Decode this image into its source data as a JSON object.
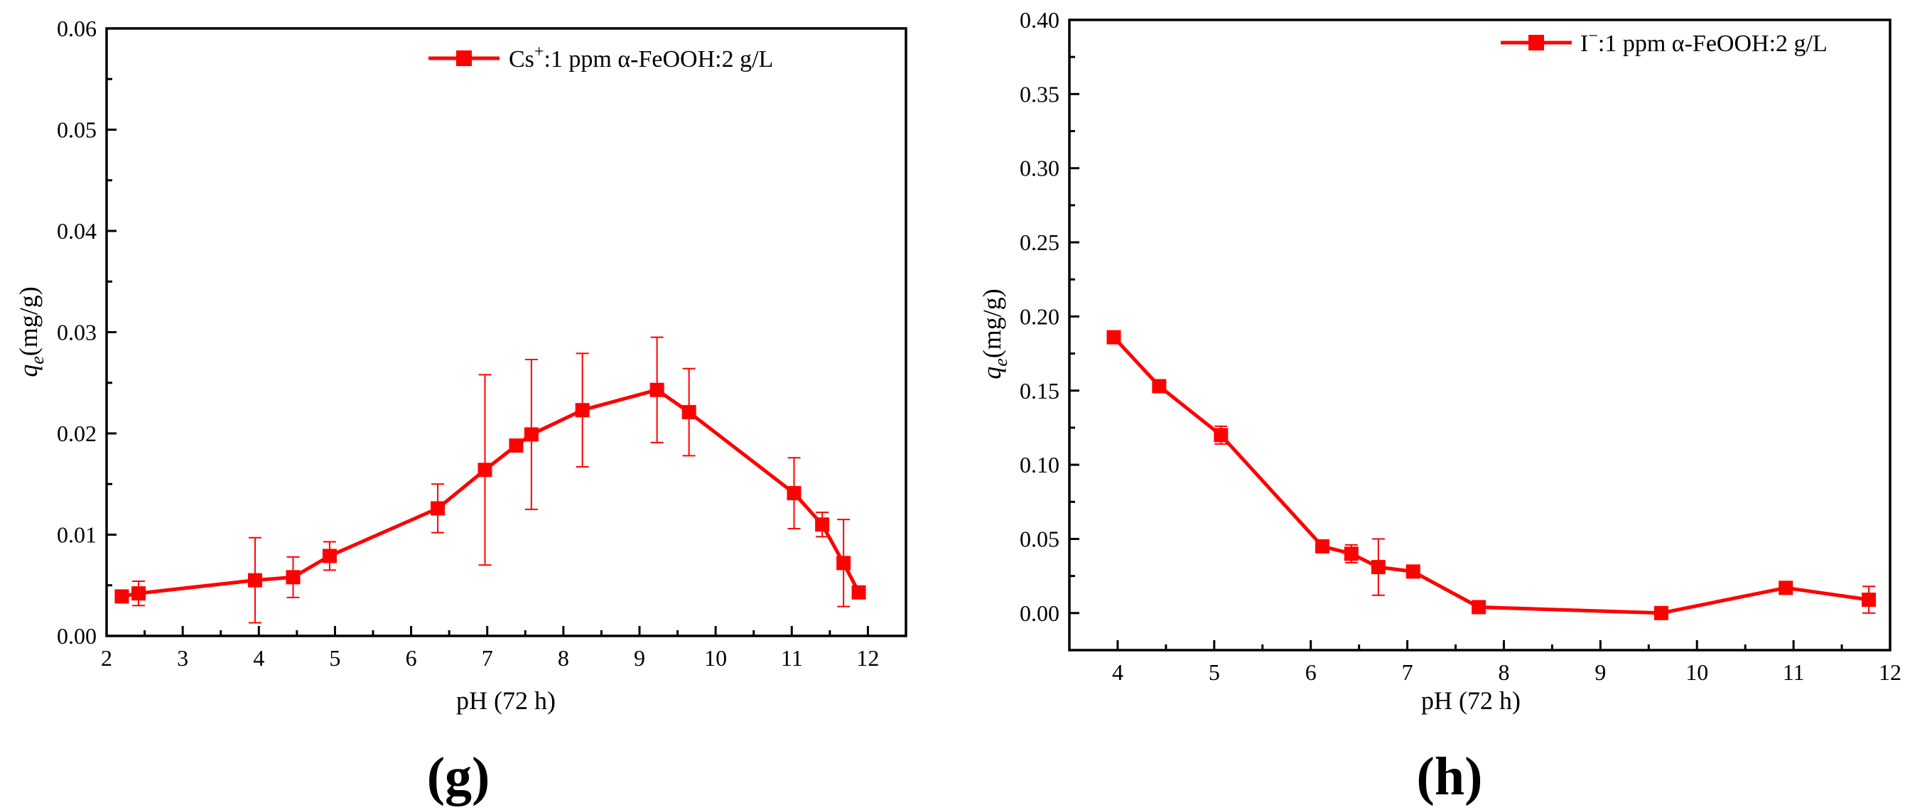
{
  "chart_data": [
    {
      "type": "line",
      "panel": "g",
      "panel_label": "(g)",
      "title": "",
      "xlabel": "pH (72 h)",
      "ylabel": "qe(mg/g)",
      "ylabel_main": "q",
      "ylabel_sub": "e",
      "ylabel_rest": "(mg/g)",
      "xlim": [
        2,
        12.5
      ],
      "ylim": [
        0,
        0.06
      ],
      "xticks": [
        2,
        3,
        4,
        5,
        6,
        7,
        8,
        9,
        10,
        11,
        12
      ],
      "xtick_labels": [
        "2",
        "3",
        "4",
        "5",
        "6",
        "7",
        "8",
        "9",
        "10",
        "11",
        "12"
      ],
      "yticks": [
        0,
        0.01,
        0.02,
        0.03,
        0.04,
        0.05,
        0.06
      ],
      "ytick_labels": [
        "0.00",
        "0.01",
        "0.02",
        "0.03",
        "0.04",
        "0.05",
        "0.06"
      ],
      "grid": false,
      "legend_position": "top-right",
      "color": "#ff0000",
      "series": [
        {
          "name": "Cs+:1 ppm α-FeOOH:2 g/L",
          "legend_ion": "Cs",
          "legend_sup": "+",
          "legend_rest": ":1 ppm α-FeOOH:2 g/L",
          "x": [
            2.2,
            2.42,
            3.95,
            4.45,
            4.93,
            6.35,
            6.97,
            7.38,
            7.58,
            8.25,
            9.23,
            9.65,
            11.03,
            11.4,
            11.68,
            11.88
          ],
          "y": [
            0.0039,
            0.0042,
            0.0055,
            0.0058,
            0.0079,
            0.0126,
            0.0164,
            0.0188,
            0.0199,
            0.0223,
            0.0243,
            0.0221,
            0.0141,
            0.011,
            0.0072,
            0.0043
          ],
          "error": [
            0.0,
            0.0012,
            0.0042,
            0.002,
            0.0014,
            0.0024,
            0.0094,
            0.0,
            0.0074,
            0.0056,
            0.0052,
            0.0043,
            0.0035,
            0.0012,
            0.0043,
            0.0
          ]
        }
      ]
    },
    {
      "type": "line",
      "panel": "h",
      "panel_label": "(h)",
      "title": "",
      "xlabel": "pH (72 h)",
      "ylabel": "qe(mg/g)",
      "ylabel_main": "q",
      "ylabel_sub": "e",
      "ylabel_rest": "(mg/g)",
      "xlim": [
        3.5,
        12
      ],
      "ylim": [
        -0.025,
        0.4
      ],
      "xticks": [
        4,
        5,
        6,
        7,
        8,
        9,
        10,
        11,
        12
      ],
      "xtick_labels": [
        "4",
        "5",
        "6",
        "7",
        "8",
        "9",
        "10",
        "11",
        "12"
      ],
      "yticks": [
        0,
        0.05,
        0.1,
        0.15,
        0.2,
        0.25,
        0.3,
        0.35,
        0.4
      ],
      "ytick_labels": [
        "0.00",
        "0.05",
        "0.10",
        "0.15",
        "0.20",
        "0.25",
        "0.30",
        "0.35",
        "0.40"
      ],
      "grid": false,
      "legend_position": "top-right",
      "color": "#ff0000",
      "series": [
        {
          "name": "I−:1 ppm α-FeOOH:2 g/L",
          "legend_ion": "I",
          "legend_sup": "−",
          "legend_rest": ":1 ppm α-FeOOH:2 g/L",
          "x": [
            3.96,
            4.43,
            5.07,
            6.12,
            6.42,
            6.7,
            7.06,
            7.74,
            9.63,
            10.92,
            11.78
          ],
          "y": [
            0.186,
            0.153,
            0.12,
            0.045,
            0.04,
            0.031,
            0.028,
            0.004,
            0.0,
            0.017,
            0.009
          ],
          "error": [
            0.0,
            0.004,
            0.006,
            0.002,
            0.006,
            0.019,
            0.002,
            0.0,
            0.0,
            0.0,
            0.009
          ]
        }
      ]
    }
  ]
}
